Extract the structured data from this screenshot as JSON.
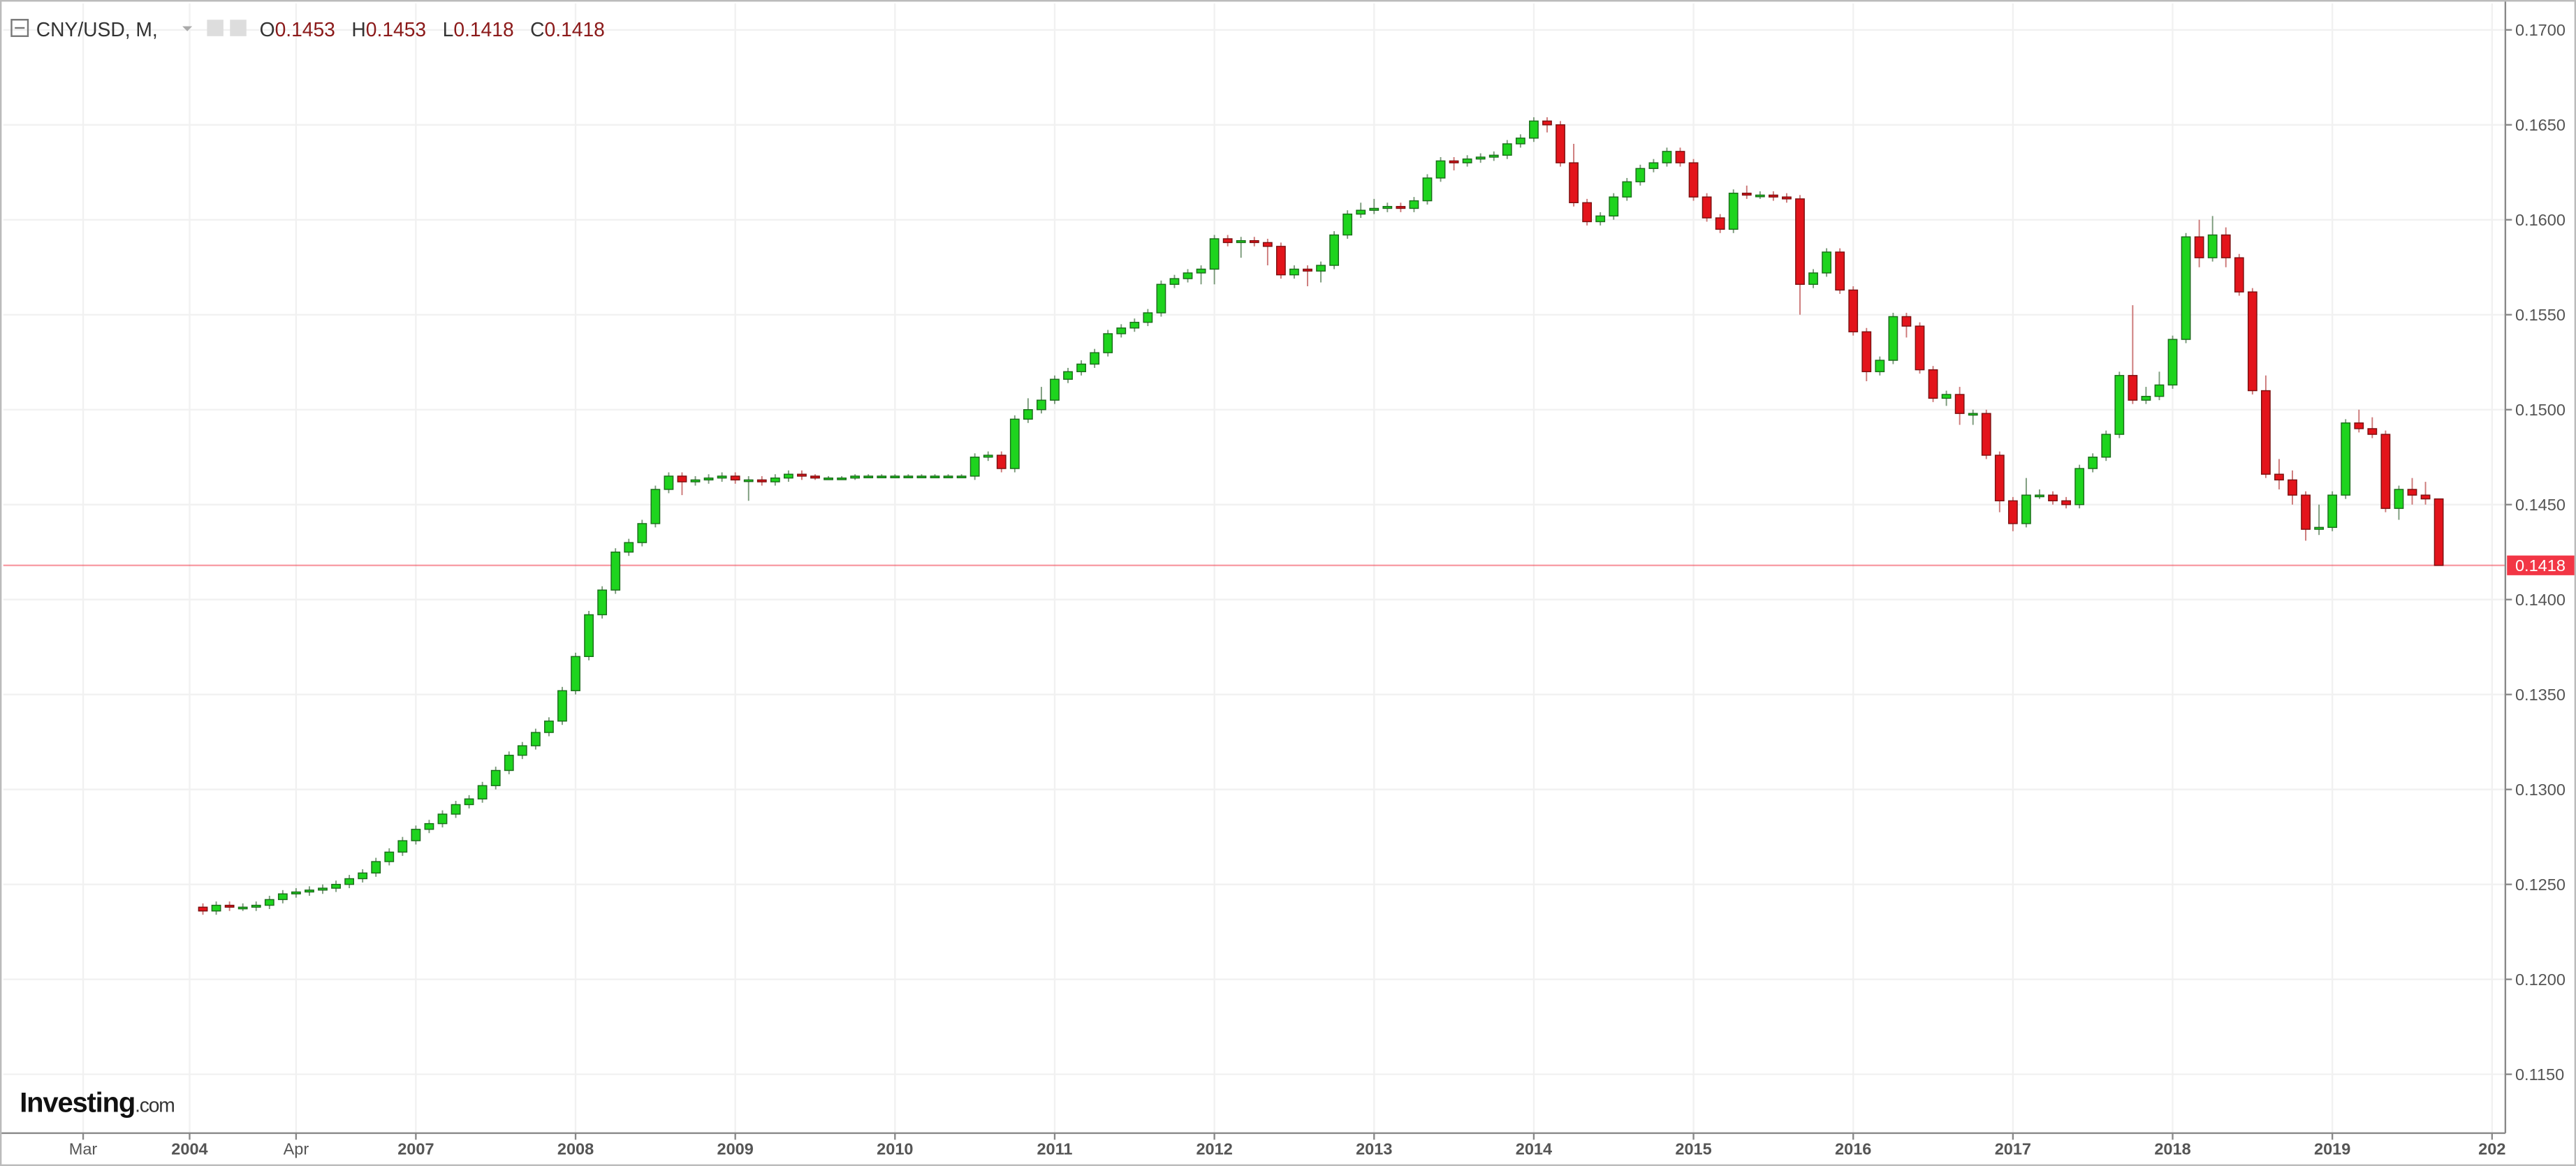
{
  "chart_data": {
    "type": "candlestick",
    "header": {
      "symbol": "CNY/USD, M,",
      "items": [
        [
          "O",
          "0.1453"
        ],
        [
          "H",
          "0.1453"
        ],
        [
          "L",
          "0.1418"
        ],
        [
          "C",
          "0.1418"
        ]
      ]
    },
    "logo": {
      "brand": "Investing",
      "suffix": ".com"
    },
    "up_color": "#1ed41e",
    "down_color": "#e3141b",
    "grid": true,
    "xlim": [
      -15,
      173
    ],
    "xticks": [
      {
        "value": -9,
        "label": "Mar"
      },
      {
        "value": -1,
        "label": "2004"
      },
      {
        "value": 7,
        "label": "Apr"
      },
      {
        "value": 16,
        "label": "2007"
      },
      {
        "value": 28,
        "label": "2008"
      },
      {
        "value": 40,
        "label": "2009"
      },
      {
        "value": 52,
        "label": "2010"
      },
      {
        "value": 64,
        "label": "2011"
      },
      {
        "value": 76,
        "label": "2012"
      },
      {
        "value": 88,
        "label": "2013"
      },
      {
        "value": 100,
        "label": "2014"
      },
      {
        "value": 112,
        "label": "2015"
      },
      {
        "value": 124,
        "label": "2016"
      },
      {
        "value": 136,
        "label": "2017"
      },
      {
        "value": 148,
        "label": "2018"
      },
      {
        "value": 160,
        "label": "2019"
      },
      {
        "value": 172,
        "label": "202"
      }
    ],
    "ylim": [
      0.1119,
      0.1714
    ],
    "yticks": [
      {
        "value": 0.115,
        "label": "0.1150"
      },
      {
        "value": 0.12,
        "label": "0.1200"
      },
      {
        "value": 0.125,
        "label": "0.1250"
      },
      {
        "value": 0.13,
        "label": "0.1300"
      },
      {
        "value": 0.135,
        "label": "0.1350"
      },
      {
        "value": 0.14,
        "label": "0.1400"
      },
      {
        "value": 0.145,
        "label": "0.1450"
      },
      {
        "value": 0.15,
        "label": "0.1500"
      },
      {
        "value": 0.155,
        "label": "0.1550"
      },
      {
        "value": 0.16,
        "label": "0.1600"
      },
      {
        "value": 0.165,
        "label": "0.1650"
      },
      {
        "value": 0.17,
        "label": "0.1700"
      }
    ],
    "last_price": {
      "value": 0.1418,
      "label": "0.1418",
      "color": "#f23645"
    },
    "ohlc": [
      [
        0.1238,
        0.124,
        0.1234,
        0.1236
      ],
      [
        0.1236,
        0.1241,
        0.1234,
        0.1239
      ],
      [
        0.1239,
        0.1241,
        0.1236,
        0.1238
      ],
      [
        0.1238,
        0.124,
        0.1236,
        0.1238
      ],
      [
        0.1238,
        0.1241,
        0.1236,
        0.1239
      ],
      [
        0.1239,
        0.1244,
        0.1237,
        0.1242
      ],
      [
        0.1242,
        0.1247,
        0.124,
        0.1245
      ],
      [
        0.1245,
        0.1248,
        0.1243,
        0.1246
      ],
      [
        0.1246,
        0.1249,
        0.1244,
        0.1247
      ],
      [
        0.1247,
        0.125,
        0.1245,
        0.1248
      ],
      [
        0.1248,
        0.1252,
        0.1246,
        0.125
      ],
      [
        0.125,
        0.1255,
        0.1248,
        0.1253
      ],
      [
        0.1253,
        0.1258,
        0.1251,
        0.1256
      ],
      [
        0.1256,
        0.1264,
        0.1254,
        0.1262
      ],
      [
        0.1262,
        0.1269,
        0.126,
        0.1267
      ],
      [
        0.1267,
        0.1275,
        0.1265,
        0.1273
      ],
      [
        0.1273,
        0.1281,
        0.1271,
        0.1279
      ],
      [
        0.1279,
        0.1284,
        0.1277,
        0.1282
      ],
      [
        0.1282,
        0.1289,
        0.128,
        0.1287
      ],
      [
        0.1287,
        0.1294,
        0.1285,
        0.1292
      ],
      [
        0.1292,
        0.1297,
        0.129,
        0.1295
      ],
      [
        0.1295,
        0.1304,
        0.1293,
        0.1302
      ],
      [
        0.1302,
        0.1312,
        0.13,
        0.131
      ],
      [
        0.131,
        0.132,
        0.1308,
        0.1318
      ],
      [
        0.1318,
        0.1325,
        0.1316,
        0.1323
      ],
      [
        0.1323,
        0.1332,
        0.1321,
        0.133
      ],
      [
        0.133,
        0.1338,
        0.1328,
        0.1336
      ],
      [
        0.1336,
        0.1354,
        0.1334,
        0.1352
      ],
      [
        0.1352,
        0.1372,
        0.135,
        0.137
      ],
      [
        0.137,
        0.1394,
        0.1368,
        0.1392
      ],
      [
        0.1392,
        0.1407,
        0.139,
        0.1405
      ],
      [
        0.1405,
        0.1427,
        0.1403,
        0.1425
      ],
      [
        0.1425,
        0.1432,
        0.1423,
        0.143
      ],
      [
        0.143,
        0.1442,
        0.1428,
        0.144
      ],
      [
        0.144,
        0.146,
        0.1438,
        0.1458
      ],
      [
        0.1458,
        0.1467,
        0.1456,
        0.1465
      ],
      [
        0.1465,
        0.1467,
        0.1455,
        0.1462
      ],
      [
        0.1462,
        0.1465,
        0.146,
        0.1463
      ],
      [
        0.1463,
        0.1466,
        0.1461,
        0.1464
      ],
      [
        0.1464,
        0.1467,
        0.1462,
        0.1465
      ],
      [
        0.1465,
        0.1467,
        0.1461,
        0.1463
      ],
      [
        0.1463,
        0.1465,
        0.1452,
        0.1463
      ],
      [
        0.1463,
        0.1465,
        0.146,
        0.1462
      ],
      [
        0.1462,
        0.1466,
        0.146,
        0.1464
      ],
      [
        0.1464,
        0.1468,
        0.1462,
        0.1466
      ],
      [
        0.1466,
        0.1468,
        0.1463,
        0.1465
      ],
      [
        0.1465,
        0.1466,
        0.1463,
        0.1464
      ],
      [
        0.1464,
        0.1465,
        0.1463,
        0.1464
      ],
      [
        0.1464,
        0.1465,
        0.1463,
        0.1464
      ],
      [
        0.1464,
        0.1466,
        0.1463,
        0.1465
      ],
      [
        0.1465,
        0.1466,
        0.1464,
        0.1465
      ],
      [
        0.1465,
        0.1466,
        0.1464,
        0.1465
      ],
      [
        0.1465,
        0.1466,
        0.1464,
        0.1465
      ],
      [
        0.1465,
        0.1466,
        0.1464,
        0.1465
      ],
      [
        0.1465,
        0.1466,
        0.1464,
        0.1465
      ],
      [
        0.1465,
        0.1466,
        0.1464,
        0.1465
      ],
      [
        0.1465,
        0.1466,
        0.1464,
        0.1465
      ],
      [
        0.1465,
        0.1466,
        0.1464,
        0.1465
      ],
      [
        0.1465,
        0.1477,
        0.1463,
        0.1475
      ],
      [
        0.1475,
        0.1478,
        0.1473,
        0.1476
      ],
      [
        0.1476,
        0.1478,
        0.1467,
        0.1469
      ],
      [
        0.1469,
        0.1497,
        0.1467,
        0.1495
      ],
      [
        0.1495,
        0.1506,
        0.1493,
        0.15
      ],
      [
        0.15,
        0.1512,
        0.1498,
        0.1505
      ],
      [
        0.1505,
        0.1518,
        0.1503,
        0.1516
      ],
      [
        0.1516,
        0.1522,
        0.1514,
        0.152
      ],
      [
        0.152,
        0.1526,
        0.1518,
        0.1524
      ],
      [
        0.1524,
        0.1532,
        0.1522,
        0.153
      ],
      [
        0.153,
        0.1542,
        0.1528,
        0.154
      ],
      [
        0.154,
        0.1545,
        0.1538,
        0.1543
      ],
      [
        0.1543,
        0.1548,
        0.1541,
        0.1546
      ],
      [
        0.1546,
        0.1553,
        0.1544,
        0.1551
      ],
      [
        0.1551,
        0.1568,
        0.1549,
        0.1566
      ],
      [
        0.1566,
        0.1571,
        0.1564,
        0.1569
      ],
      [
        0.1569,
        0.1574,
        0.1567,
        0.1572
      ],
      [
        0.1572,
        0.1576,
        0.1566,
        0.1574
      ],
      [
        0.1574,
        0.1592,
        0.1566,
        0.159
      ],
      [
        0.159,
        0.1592,
        0.1586,
        0.1588
      ],
      [
        0.1588,
        0.1591,
        0.158,
        0.1589
      ],
      [
        0.1589,
        0.1591,
        0.1586,
        0.1588
      ],
      [
        0.1588,
        0.159,
        0.1576,
        0.1586
      ],
      [
        0.1586,
        0.1588,
        0.1569,
        0.1571
      ],
      [
        0.1571,
        0.1576,
        0.1569,
        0.1574
      ],
      [
        0.1574,
        0.1576,
        0.1565,
        0.1573
      ],
      [
        0.1573,
        0.1578,
        0.1567,
        0.1576
      ],
      [
        0.1576,
        0.1594,
        0.1574,
        0.1592
      ],
      [
        0.1592,
        0.1605,
        0.159,
        0.1603
      ],
      [
        0.1603,
        0.1609,
        0.1601,
        0.1605
      ],
      [
        0.1605,
        0.1611,
        0.1603,
        0.1606
      ],
      [
        0.1606,
        0.1609,
        0.1604,
        0.1607
      ],
      [
        0.1607,
        0.1609,
        0.1604,
        0.1606
      ],
      [
        0.1606,
        0.1612,
        0.1604,
        0.161
      ],
      [
        0.161,
        0.1624,
        0.1608,
        0.1622
      ],
      [
        0.1622,
        0.1633,
        0.162,
        0.1631
      ],
      [
        0.1631,
        0.1633,
        0.1626,
        0.163
      ],
      [
        0.163,
        0.1634,
        0.1628,
        0.1632
      ],
      [
        0.1632,
        0.1635,
        0.163,
        0.1633
      ],
      [
        0.1633,
        0.1636,
        0.1631,
        0.1634
      ],
      [
        0.1634,
        0.1642,
        0.1632,
        0.164
      ],
      [
        0.164,
        0.1645,
        0.1638,
        0.1643
      ],
      [
        0.1643,
        0.1654,
        0.1641,
        0.1652
      ],
      [
        0.1652,
        0.1654,
        0.1646,
        0.165
      ],
      [
        0.165,
        0.1652,
        0.1628,
        0.163
      ],
      [
        0.163,
        0.164,
        0.1607,
        0.1609
      ],
      [
        0.1609,
        0.1611,
        0.1597,
        0.1599
      ],
      [
        0.1599,
        0.1604,
        0.1597,
        0.1602
      ],
      [
        0.1602,
        0.1614,
        0.16,
        0.1612
      ],
      [
        0.1612,
        0.1622,
        0.161,
        0.162
      ],
      [
        0.162,
        0.1629,
        0.1618,
        0.1627
      ],
      [
        0.1627,
        0.1632,
        0.1625,
        0.163
      ],
      [
        0.163,
        0.1638,
        0.1628,
        0.1636
      ],
      [
        0.1636,
        0.1638,
        0.1628,
        0.163
      ],
      [
        0.163,
        0.1632,
        0.161,
        0.1612
      ],
      [
        0.1612,
        0.1614,
        0.1599,
        0.1601
      ],
      [
        0.1601,
        0.1603,
        0.1593,
        0.1595
      ],
      [
        0.1595,
        0.1616,
        0.1593,
        0.1614
      ],
      [
        0.1614,
        0.1618,
        0.1611,
        0.1613
      ],
      [
        0.1613,
        0.1615,
        0.1611,
        0.1613
      ],
      [
        0.1613,
        0.1615,
        0.161,
        0.1612
      ],
      [
        0.1612,
        0.1614,
        0.1609,
        0.1611
      ],
      [
        0.1611,
        0.1613,
        0.155,
        0.1566
      ],
      [
        0.1566,
        0.1574,
        0.1564,
        0.1572
      ],
      [
        0.1572,
        0.1585,
        0.157,
        0.1583
      ],
      [
        0.1583,
        0.1585,
        0.1561,
        0.1563
      ],
      [
        0.1563,
        0.1565,
        0.1539,
        0.1541
      ],
      [
        0.1541,
        0.1543,
        0.1515,
        0.152
      ],
      [
        0.152,
        0.1528,
        0.1518,
        0.1526
      ],
      [
        0.1526,
        0.1551,
        0.1524,
        0.1549
      ],
      [
        0.1549,
        0.1551,
        0.1538,
        0.1544
      ],
      [
        0.1544,
        0.1546,
        0.1519,
        0.1521
      ],
      [
        0.1521,
        0.1523,
        0.1504,
        0.1506
      ],
      [
        0.1506,
        0.151,
        0.1502,
        0.1508
      ],
      [
        0.1508,
        0.1512,
        0.1492,
        0.1498
      ],
      [
        0.1498,
        0.15,
        0.1492,
        0.1498
      ],
      [
        0.1498,
        0.15,
        0.1474,
        0.1476
      ],
      [
        0.1476,
        0.1478,
        0.1446,
        0.1452
      ],
      [
        0.1452,
        0.1454,
        0.1436,
        0.144
      ],
      [
        0.144,
        0.1464,
        0.1438,
        0.1455
      ],
      [
        0.1455,
        0.1458,
        0.1453,
        0.1455
      ],
      [
        0.1455,
        0.1457,
        0.145,
        0.1452
      ],
      [
        0.1452,
        0.1454,
        0.1448,
        0.145
      ],
      [
        0.145,
        0.1471,
        0.1448,
        0.1469
      ],
      [
        0.1469,
        0.1477,
        0.1467,
        0.1475
      ],
      [
        0.1475,
        0.1489,
        0.1473,
        0.1487
      ],
      [
        0.1487,
        0.152,
        0.1485,
        0.1518
      ],
      [
        0.1518,
        0.1555,
        0.1503,
        0.1505
      ],
      [
        0.1505,
        0.1512,
        0.1503,
        0.1507
      ],
      [
        0.1507,
        0.152,
        0.1505,
        0.1513
      ],
      [
        0.1513,
        0.1539,
        0.1511,
        0.1537
      ],
      [
        0.1537,
        0.1593,
        0.1535,
        0.1591
      ],
      [
        0.1591,
        0.16,
        0.1575,
        0.158
      ],
      [
        0.158,
        0.1602,
        0.1578,
        0.1592
      ],
      [
        0.1592,
        0.1596,
        0.1575,
        0.158
      ],
      [
        0.158,
        0.1582,
        0.156,
        0.1562
      ],
      [
        0.1562,
        0.1564,
        0.1508,
        0.151
      ],
      [
        0.151,
        0.1518,
        0.1464,
        0.1466
      ],
      [
        0.1466,
        0.1474,
        0.1458,
        0.1463
      ],
      [
        0.1463,
        0.1468,
        0.145,
        0.1455
      ],
      [
        0.1455,
        0.1457,
        0.1431,
        0.1437
      ],
      [
        0.1437,
        0.145,
        0.1434,
        0.1438
      ],
      [
        0.1438,
        0.1457,
        0.1436,
        0.1455
      ],
      [
        0.1455,
        0.1495,
        0.1453,
        0.1493
      ],
      [
        0.1493,
        0.15,
        0.1488,
        0.149
      ],
      [
        0.149,
        0.1496,
        0.1485,
        0.1487
      ],
      [
        0.1487,
        0.1489,
        0.1446,
        0.1448
      ],
      [
        0.1448,
        0.146,
        0.1442,
        0.1458
      ],
      [
        0.1458,
        0.1464,
        0.145,
        0.1455
      ],
      [
        0.1455,
        0.1462,
        0.145,
        0.1453
      ],
      [
        0.1453,
        0.1453,
        0.1418,
        0.1418
      ]
    ]
  }
}
